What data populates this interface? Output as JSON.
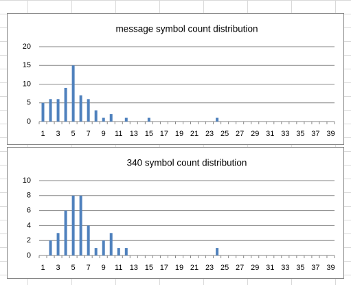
{
  "chart_data": [
    {
      "type": "bar",
      "title": "message symbol count distribution",
      "categories": [
        "1",
        null,
        "3",
        null,
        "5",
        null,
        "7",
        null,
        "9",
        null,
        "11",
        null,
        "13",
        null,
        "15",
        null,
        "17",
        null,
        "19",
        null,
        "21",
        null,
        "23",
        null,
        "25",
        null,
        "27",
        null,
        "29",
        null,
        "31",
        null,
        "33",
        null,
        "35",
        null,
        "37",
        null,
        "39"
      ],
      "values": [
        5,
        6,
        6,
        9,
        15,
        7,
        6,
        3,
        1,
        2,
        0,
        1,
        0,
        0,
        1,
        0,
        0,
        0,
        0,
        0,
        0,
        0,
        0,
        1,
        0,
        0,
        0,
        0,
        0,
        0,
        0,
        0,
        0,
        0,
        0,
        0,
        0,
        0,
        0
      ],
      "color": "#4f81bd",
      "ylim": [
        0,
        20
      ],
      "yticks": [
        0,
        5,
        10,
        15,
        20
      ],
      "grid": true
    },
    {
      "type": "bar",
      "title": "340 symbol count distribution",
      "categories": [
        "1",
        null,
        "3",
        null,
        "5",
        null,
        "7",
        null,
        "9",
        null,
        "11",
        null,
        "13",
        null,
        "15",
        null,
        "17",
        null,
        "19",
        null,
        "21",
        null,
        "23",
        null,
        "25",
        null,
        "27",
        null,
        "29",
        null,
        "31",
        null,
        "33",
        null,
        "35",
        null,
        "37",
        null,
        "39"
      ],
      "values": [
        0,
        2,
        3,
        6,
        8,
        8,
        4,
        1,
        2,
        3,
        1,
        1,
        0,
        0,
        0,
        0,
        0,
        0,
        0,
        0,
        0,
        0,
        0,
        1,
        0,
        0,
        0,
        0,
        0,
        0,
        0,
        0,
        0,
        0,
        0,
        0,
        0,
        0,
        0
      ],
      "color": "#4f81bd",
      "ylim": [
        0,
        10
      ],
      "yticks": [
        0,
        2,
        4,
        6,
        8,
        10
      ],
      "grid": true
    }
  ]
}
